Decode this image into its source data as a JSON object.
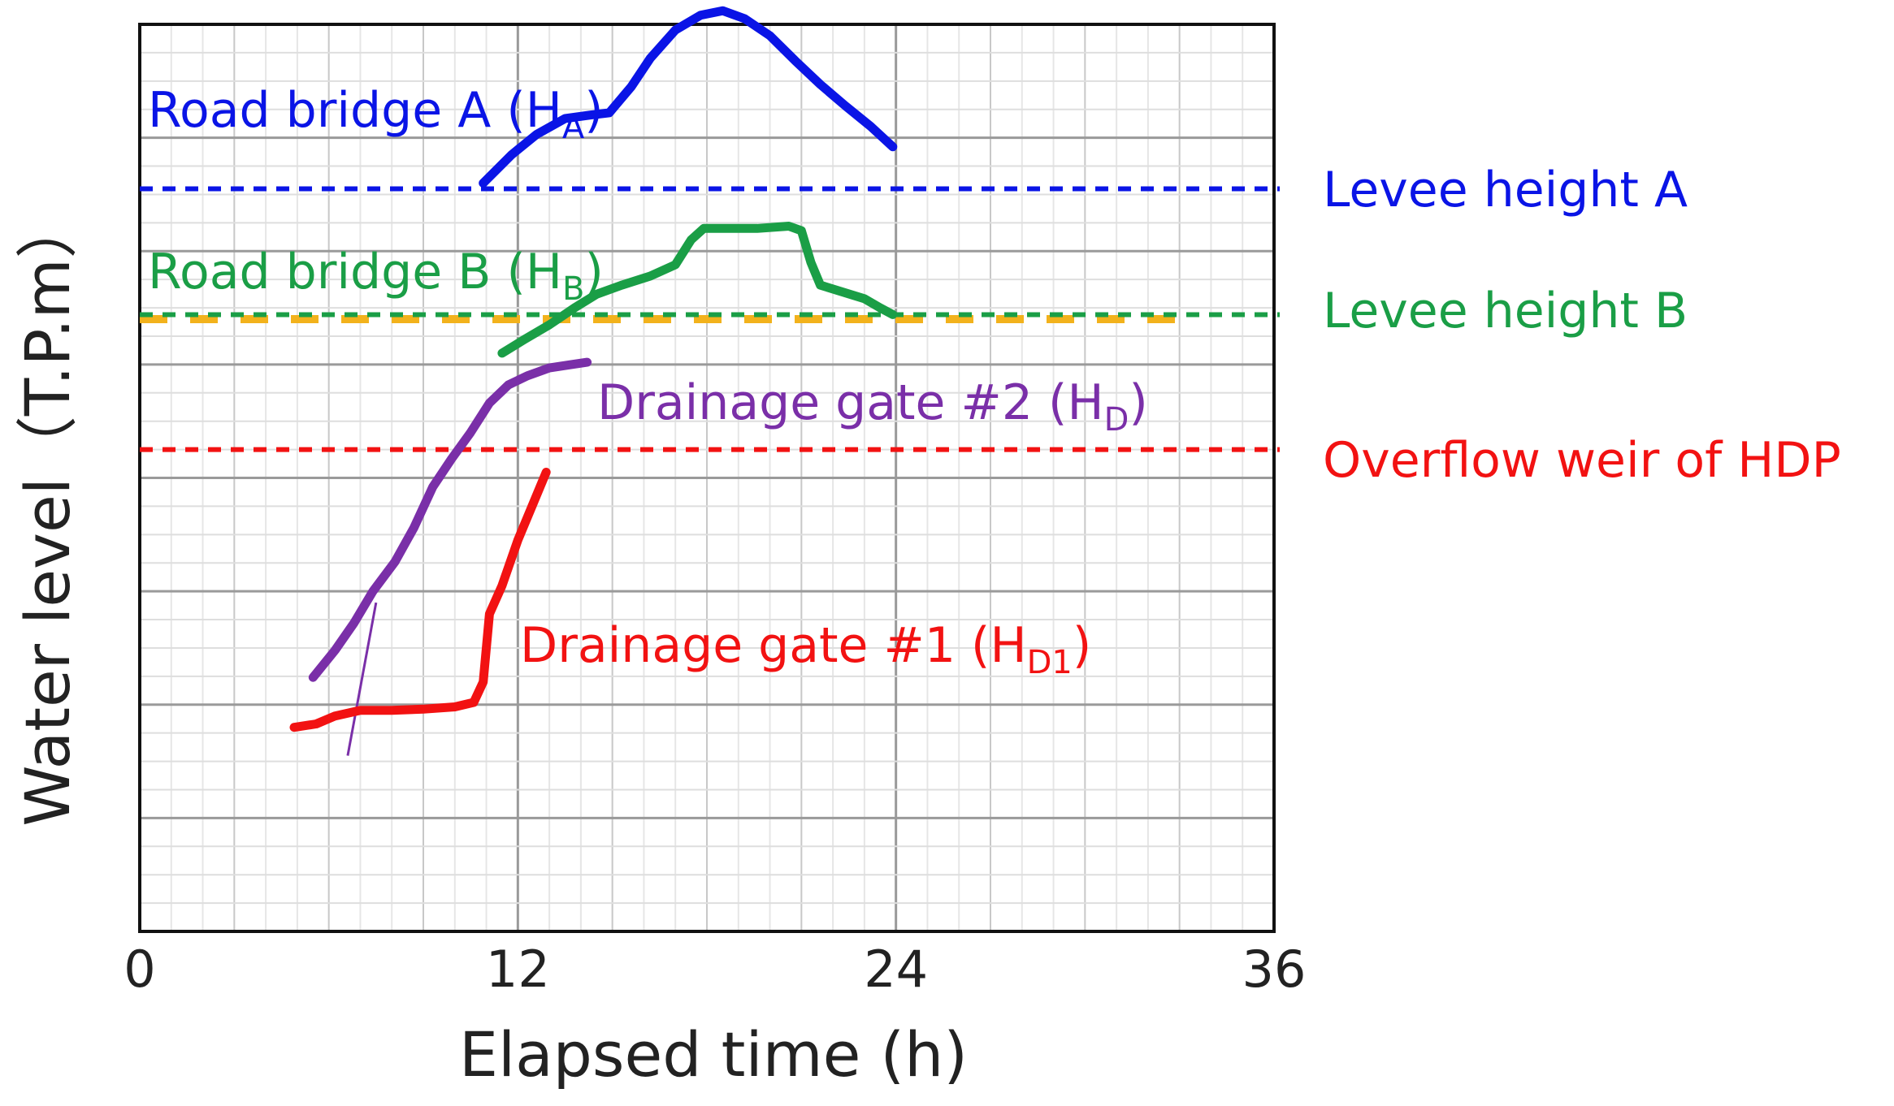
{
  "chart_data": {
    "type": "line",
    "xlabel": "Elapsed time (h)",
    "ylabel": "Water level（T.P.m）",
    "xlim": [
      0,
      36
    ],
    "ylim": [
      0,
      8
    ],
    "xticks": [
      "0",
      "12",
      "24",
      "36"
    ],
    "grid": true,
    "series": [
      {
        "name": "Road bridge A (H",
        "sub": "A",
        "close": ")",
        "color": "#0a14e6",
        "x": [
          10.9,
          11.8,
          12.6,
          13.5,
          14.3,
          14.9,
          15.6,
          16.2,
          17.0,
          17.8,
          18.5,
          19.2,
          20.0,
          20.8,
          21.6,
          22.4,
          23.2,
          23.9
        ],
        "y": [
          6.6,
          6.85,
          7.03,
          7.17,
          7.2,
          7.22,
          7.45,
          7.7,
          7.95,
          8.08,
          8.12,
          8.05,
          7.9,
          7.68,
          7.47,
          7.28,
          7.1,
          6.92
        ]
      },
      {
        "name": "Road bridge B (H",
        "sub": "B",
        "close": ")",
        "color": "#1a9e46",
        "x": [
          11.5,
          12.2,
          13.0,
          13.8,
          14.5,
          15.3,
          16.2,
          17.0,
          17.5,
          17.9,
          18.6,
          19.6,
          20.6,
          21.0,
          21.3,
          21.6,
          22.3,
          23.0,
          23.5,
          23.9
        ],
        "y": [
          5.1,
          5.22,
          5.35,
          5.5,
          5.62,
          5.7,
          5.78,
          5.88,
          6.1,
          6.2,
          6.2,
          6.2,
          6.22,
          6.18,
          5.9,
          5.7,
          5.64,
          5.58,
          5.5,
          5.44
        ]
      },
      {
        "name": "Drainage gate #2 (H",
        "sub": "D",
        "close": ")",
        "color": "#7a2fa8",
        "x": [
          5.5,
          6.2,
          6.8,
          7.4,
          8.1,
          8.7,
          9.3,
          9.9,
          10.5,
          11.1,
          11.7,
          12.3,
          13.0,
          13.7,
          14.2
        ],
        "y": [
          2.24,
          2.48,
          2.72,
          3.0,
          3.26,
          3.56,
          3.92,
          4.17,
          4.4,
          4.66,
          4.82,
          4.9,
          4.97,
          5.0,
          5.02
        ]
      },
      {
        "name": "Drainage gate #1 (H",
        "sub": "D1",
        "close": ")",
        "color": "#f21212",
        "x": [
          4.9,
          5.6,
          6.2,
          7.0,
          8.0,
          9.0,
          10.0,
          10.6,
          10.9,
          11.1,
          11.5,
          12.0,
          12.6,
          12.9
        ],
        "y": [
          1.8,
          1.83,
          1.9,
          1.95,
          1.95,
          1.96,
          1.98,
          2.02,
          2.2,
          2.8,
          3.05,
          3.45,
          3.85,
          4.05
        ]
      }
    ],
    "reference_lines": [
      {
        "name": "Levee height A",
        "y": 6.55,
        "color": "#0a14e6"
      },
      {
        "name": "Levee height B",
        "y": 5.44,
        "color": "#1a9e46"
      },
      {
        "name": "Overflow weir of HDP",
        "y": 4.25,
        "color": "#f21212"
      }
    ],
    "orange_dashed_line": {
      "y": 5.4,
      "color": "#f2b21c"
    },
    "tangent_line": {
      "color": "#7a2fa8",
      "x": [
        6.6,
        7.5
      ],
      "y": 1.55
    }
  }
}
